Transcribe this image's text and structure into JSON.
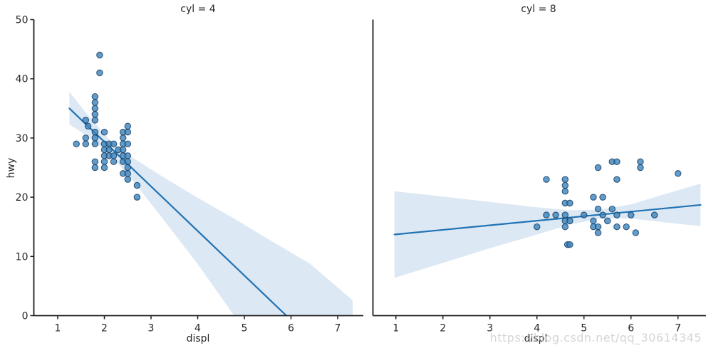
{
  "figure": {
    "watermark": "https://blog.csdn.net/qq_30614345"
  },
  "colors": {
    "point_fill": "#3b83bd",
    "point_edge": "#123a5e",
    "regression_line": "#2173b4",
    "ci_band": "#dce8f4",
    "spine": "#1c1c1c",
    "text": "#262626"
  },
  "chart_data": {
    "type": "scatter",
    "description": "Faceted scatter plot (seaborn lmplot style) of highway mpg vs engine displacement with linear regression fit and confidence band, faceted by cylinder count",
    "ylabel": "hwy",
    "ylim": [
      0,
      50
    ],
    "y_ticks": [
      0,
      10,
      20,
      30,
      40,
      50
    ],
    "facets": [
      {
        "title": "cyl = 4",
        "xlabel": "displ",
        "x_ticks": [
          1,
          2,
          3,
          4,
          5,
          6,
          7
        ],
        "xlim": [
          0.5,
          7.55
        ],
        "points": [
          [
            1.4,
            29
          ],
          [
            1.6,
            33
          ],
          [
            1.65,
            32
          ],
          [
            1.6,
            30
          ],
          [
            1.6,
            29
          ],
          [
            1.8,
            37
          ],
          [
            1.8,
            36
          ],
          [
            1.8,
            35
          ],
          [
            1.8,
            34
          ],
          [
            1.8,
            33
          ],
          [
            1.8,
            31
          ],
          [
            1.8,
            30
          ],
          [
            1.8,
            29
          ],
          [
            1.8,
            26
          ],
          [
            1.8,
            25
          ],
          [
            1.9,
            44
          ],
          [
            1.9,
            41
          ],
          [
            2.0,
            31
          ],
          [
            2.0,
            29
          ],
          [
            2.0,
            28
          ],
          [
            2.0,
            27
          ],
          [
            2.0,
            26
          ],
          [
            2.0,
            25
          ],
          [
            2.1,
            29
          ],
          [
            2.1,
            28
          ],
          [
            2.1,
            27
          ],
          [
            2.2,
            29
          ],
          [
            2.2,
            27
          ],
          [
            2.2,
            26
          ],
          [
            2.3,
            28
          ],
          [
            2.4,
            31
          ],
          [
            2.4,
            30
          ],
          [
            2.4,
            29
          ],
          [
            2.4,
            28
          ],
          [
            2.4,
            27
          ],
          [
            2.4,
            26
          ],
          [
            2.4,
            24
          ],
          [
            2.5,
            32
          ],
          [
            2.5,
            31
          ],
          [
            2.5,
            29
          ],
          [
            2.5,
            27
          ],
          [
            2.5,
            26
          ],
          [
            2.5,
            25
          ],
          [
            2.5,
            24
          ],
          [
            2.5,
            23
          ],
          [
            2.7,
            22
          ],
          [
            2.7,
            20
          ]
        ],
        "regression_line": [
          [
            1.25,
            35.0
          ],
          [
            5.9,
            0
          ]
        ],
        "ci_band": [
          [
            1.25,
            37.8
          ],
          [
            1.6,
            34.3
          ],
          [
            2.1,
            29.8
          ],
          [
            2.6,
            26.7
          ],
          [
            3.2,
            23.7
          ],
          [
            4.0,
            19.9
          ],
          [
            4.8,
            16.3
          ],
          [
            5.6,
            12.5
          ],
          [
            6.4,
            8.8
          ],
          [
            7.32,
            2.6
          ],
          [
            7.32,
            0
          ],
          [
            4.78,
            0
          ],
          [
            4.0,
            8.7
          ],
          [
            3.2,
            16.9
          ],
          [
            2.6,
            22.9
          ],
          [
            2.1,
            27.4
          ],
          [
            1.6,
            30.5
          ],
          [
            1.25,
            32.3
          ]
        ]
      },
      {
        "title": "cyl = 8",
        "xlabel": "displ",
        "x_ticks": [
          1,
          2,
          3,
          4,
          5,
          6,
          7
        ],
        "xlim": [
          0.5,
          7.6
        ],
        "points": [
          [
            4.0,
            15
          ],
          [
            4.2,
            23
          ],
          [
            4.2,
            17
          ],
          [
            4.4,
            17
          ],
          [
            4.6,
            23
          ],
          [
            4.6,
            22
          ],
          [
            4.6,
            21
          ],
          [
            4.6,
            19
          ],
          [
            4.7,
            19
          ],
          [
            4.6,
            17
          ],
          [
            4.6,
            16
          ],
          [
            4.7,
            16
          ],
          [
            4.6,
            15
          ],
          [
            4.65,
            12
          ],
          [
            4.7,
            12
          ],
          [
            5.0,
            17
          ],
          [
            5.2,
            20
          ],
          [
            5.3,
            25
          ],
          [
            5.3,
            18
          ],
          [
            5.4,
            20
          ],
          [
            5.4,
            17
          ],
          [
            5.2,
            16
          ],
          [
            5.5,
            16
          ],
          [
            5.2,
            15
          ],
          [
            5.3,
            15
          ],
          [
            5.3,
            14
          ],
          [
            5.6,
            26
          ],
          [
            5.7,
            26
          ],
          [
            5.6,
            18
          ],
          [
            5.7,
            17
          ],
          [
            5.7,
            23
          ],
          [
            5.7,
            15
          ],
          [
            5.9,
            15
          ],
          [
            6.0,
            17
          ],
          [
            6.1,
            14
          ],
          [
            6.2,
            26
          ],
          [
            6.2,
            25
          ],
          [
            6.5,
            17
          ],
          [
            7.0,
            24
          ]
        ],
        "regression_line": [
          [
            0.97,
            13.7
          ],
          [
            7.48,
            18.7
          ]
        ],
        "ci_band": [
          [
            0.97,
            21.0
          ],
          [
            2.0,
            20.1
          ],
          [
            3.0,
            19.2
          ],
          [
            4.0,
            18.3
          ],
          [
            4.7,
            17.8
          ],
          [
            5.35,
            17.9
          ],
          [
            6.0,
            18.8
          ],
          [
            6.8,
            20.7
          ],
          [
            7.48,
            22.3
          ],
          [
            7.48,
            15.1
          ],
          [
            6.8,
            15.7
          ],
          [
            6.0,
            16.4
          ],
          [
            5.35,
            16.4
          ],
          [
            4.7,
            15.4
          ],
          [
            4.0,
            13.7
          ],
          [
            3.0,
            11.4
          ],
          [
            2.0,
            8.9
          ],
          [
            0.97,
            6.4
          ]
        ]
      }
    ]
  }
}
